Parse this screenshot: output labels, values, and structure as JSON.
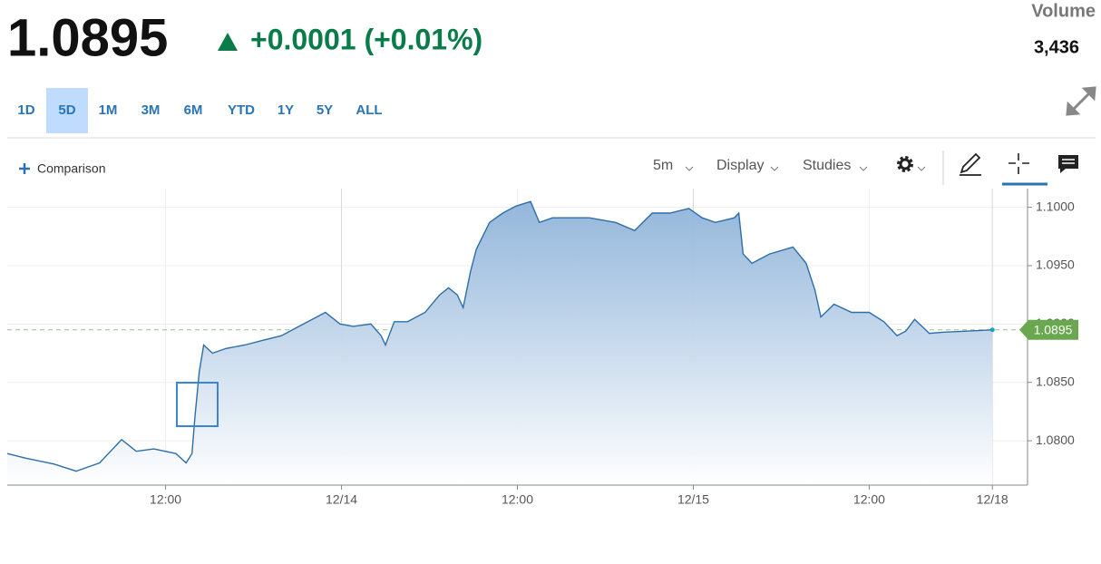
{
  "header": {
    "price": "1.0895",
    "change": "+0.0001 (+0.01%)",
    "volume_label": "Volume",
    "volume": "3,436"
  },
  "range_tabs": [
    "1D",
    "5D",
    "1M",
    "3M",
    "6M",
    "YTD",
    "1Y",
    "5Y",
    "ALL"
  ],
  "selected_tab": 1,
  "toolbar": {
    "comparison": "Comparison",
    "interval": "5m",
    "display": "Display",
    "studies": "Studies"
  },
  "chart_data": {
    "type": "area",
    "color": "#2d6ea8",
    "x": [
      1.2,
      2.5,
      4.4,
      5.9,
      7.5,
      9.0,
      10.0,
      11.2,
      12.7,
      13.4,
      13.8,
      14.0,
      14.3,
      14.6,
      15.2,
      16.1,
      17.4,
      18.6,
      19.9,
      21.1,
      22.3,
      22.9,
      23.9,
      24.8,
      26.0,
      26.7,
      27.0,
      27.6,
      28.5,
      29.7,
      30.7,
      31.3,
      31.9,
      32.3,
      32.8,
      33.2,
      34.1,
      35.0,
      35.9,
      36.9,
      37.5,
      38.4,
      39.6,
      40.9,
      42.7,
      44.0,
      45.2,
      46.4,
      47.7,
      48.6,
      49.5,
      50.8,
      51.1,
      51.4,
      52.0,
      53.2,
      54.8,
      55.7,
      56.3,
      56.7,
      57.6,
      58.8,
      60.0,
      61.0,
      61.9,
      62.5,
      63.1,
      64.1,
      65.0,
      68.4
    ],
    "values": [
      1.0789,
      1.0785,
      1.078,
      1.0774,
      1.0781,
      1.0801,
      1.0791,
      1.0793,
      1.0789,
      1.0781,
      1.0789,
      1.082,
      1.0859,
      1.0882,
      1.0875,
      1.0879,
      1.0882,
      1.0886,
      1.089,
      1.0898,
      1.0906,
      1.091,
      1.09,
      1.0898,
      1.09,
      1.089,
      1.0882,
      1.0902,
      1.0902,
      1.091,
      1.0925,
      1.0931,
      1.0925,
      1.0914,
      1.0945,
      1.0964,
      1.0987,
      1.0995,
      1.1001,
      1.1005,
      1.0987,
      1.0991,
      1.0991,
      1.0991,
      1.0987,
      1.098,
      1.0995,
      1.0995,
      1.0999,
      1.0991,
      1.0987,
      1.0991,
      1.0995,
      1.096,
      1.0952,
      1.096,
      1.0966,
      1.0952,
      1.0929,
      1.0906,
      1.0917,
      1.091,
      1.091,
      1.0902,
      1.089,
      1.0894,
      1.0904,
      1.0892,
      1.0893,
      1.0895
    ],
    "xlim": [
      1.2,
      70.8
    ],
    "xticks": [
      {
        "value": 12,
        "label": "12:00"
      },
      {
        "value": 24,
        "label": "12/14"
      },
      {
        "value": 36,
        "label": "12:00"
      },
      {
        "value": 48,
        "label": "12/15"
      },
      {
        "value": 60,
        "label": "12:00"
      },
      {
        "value": 68.4,
        "label": "12/18"
      }
    ],
    "ylim": [
      1.0762,
      1.1016
    ],
    "yticks": [
      {
        "value": 1.08,
        "label": "1.0800"
      },
      {
        "value": 1.085,
        "label": "1.0850"
      },
      {
        "value": 1.09,
        "label": "1.0900"
      },
      {
        "value": 1.095,
        "label": "1.0950"
      },
      {
        "value": 1.1,
        "label": "1.1000"
      }
    ],
    "price_line": {
      "value": 1.0895,
      "label": "1.0895",
      "color": "#6aa84f"
    },
    "grid": true
  }
}
